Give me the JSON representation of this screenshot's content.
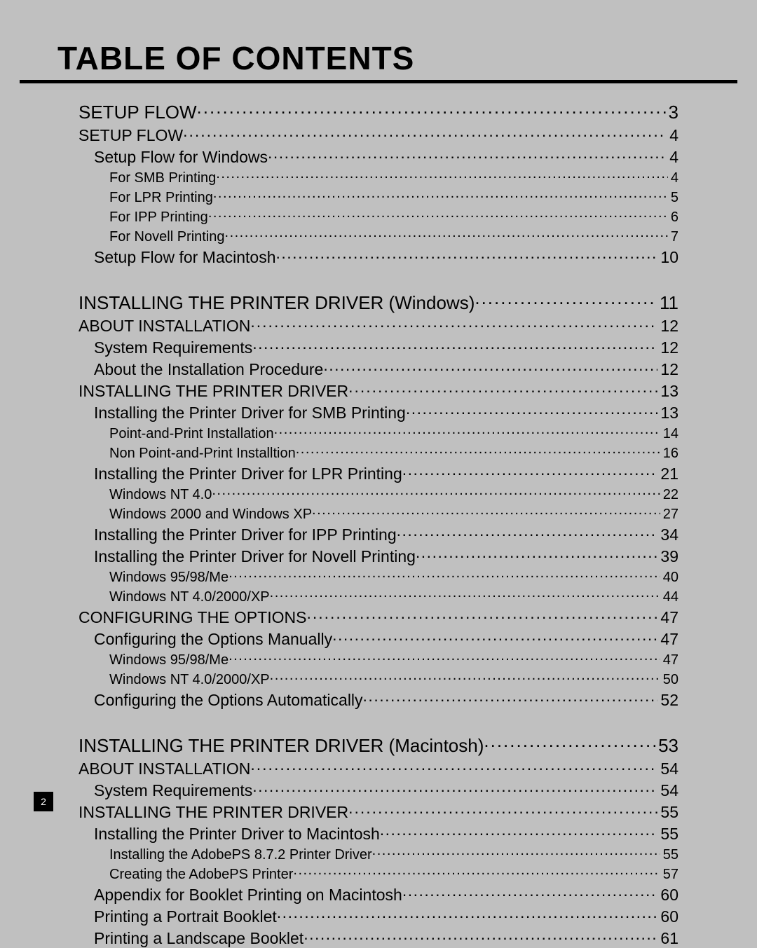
{
  "title": "TABLE OF CONTENTS",
  "page_number": "2",
  "entries": [
    {
      "level": 1,
      "label": "SETUP FLOW",
      "page": "3"
    },
    {
      "level": 2,
      "label": "SETUP FLOW",
      "page": "4"
    },
    {
      "level": 3,
      "label": "Setup Flow for Windows",
      "page": "4"
    },
    {
      "level": 4,
      "label": "For SMB Printing",
      "page": "4"
    },
    {
      "level": 4,
      "label": "For LPR Printing",
      "page": "5"
    },
    {
      "level": 4,
      "label": "For IPP Printing",
      "page": "6"
    },
    {
      "level": 4,
      "label": "For Novell Printing",
      "page": "7"
    },
    {
      "level": 3,
      "label": "Setup Flow for Macintosh",
      "page": "10"
    },
    {
      "level": 1,
      "label": "INSTALLING THE PRINTER DRIVER (Windows)",
      "page": "11"
    },
    {
      "level": 2,
      "label": "ABOUT INSTALLATION",
      "page": "12"
    },
    {
      "level": 3,
      "label": "System Requirements",
      "page": "12"
    },
    {
      "level": 3,
      "label": "About the Installation Procedure",
      "page": "12"
    },
    {
      "level": 2,
      "label": "INSTALLING THE PRINTER DRIVER",
      "page": "13"
    },
    {
      "level": 3,
      "label": "Installing the Printer Driver for SMB Printing",
      "page": "13"
    },
    {
      "level": 4,
      "label": "Point-and-Print Installation",
      "page": "14"
    },
    {
      "level": 4,
      "label": "Non Point-and-Print Installtion",
      "page": "16"
    },
    {
      "level": 3,
      "label": "Installing the Printer Driver for LPR Printing",
      "page": "21"
    },
    {
      "level": 4,
      "label": "Windows NT 4.0",
      "page": "22"
    },
    {
      "level": 4,
      "label": "Windows 2000 and Windows XP",
      "page": "27"
    },
    {
      "level": 3,
      "label": "Installing the Printer Driver for IPP Printing",
      "page": "34"
    },
    {
      "level": 3,
      "label": "Installing the Printer Driver for Novell Printing",
      "page": "39"
    },
    {
      "level": 4,
      "label": "Windows 95/98/Me",
      "page": "40"
    },
    {
      "level": 4,
      "label": "Windows NT 4.0/2000/XP",
      "page": "44"
    },
    {
      "level": 2,
      "label": "CONFIGURING THE OPTIONS",
      "page": "47"
    },
    {
      "level": 3,
      "label": "Configuring the Options Manually",
      "page": "47"
    },
    {
      "level": 4,
      "label": "Windows 95/98/Me",
      "page": "47"
    },
    {
      "level": 4,
      "label": "Windows NT 4.0/2000/XP",
      "page": "50"
    },
    {
      "level": 3,
      "label": "Configuring the Options Automatically",
      "page": "52"
    },
    {
      "level": 1,
      "label": "INSTALLING THE PRINTER DRIVER (Macintosh)",
      "page": "53"
    },
    {
      "level": 2,
      "label": "ABOUT INSTALLATION",
      "page": "54"
    },
    {
      "level": 3,
      "label": "System Requirements",
      "page": "54"
    },
    {
      "level": 2,
      "label": "INSTALLING THE PRINTER DRIVER",
      "page": "55"
    },
    {
      "level": 3,
      "label": "Installing the Printer Driver to Macintosh",
      "page": "55"
    },
    {
      "level": 4,
      "label": "Installing the AdobePS 8.7.2 Printer Driver",
      "page": "55"
    },
    {
      "level": 4,
      "label": "Creating the AdobePS Printer",
      "page": "57"
    },
    {
      "level": 3,
      "label": "Appendix for Booklet Printing on Macintosh",
      "page": "60"
    },
    {
      "level": 3,
      "label": "Printing a Portrait Booklet",
      "page": "60"
    },
    {
      "level": 3,
      "label": "Printing a Landscape Booklet",
      "page": "61"
    }
  ]
}
